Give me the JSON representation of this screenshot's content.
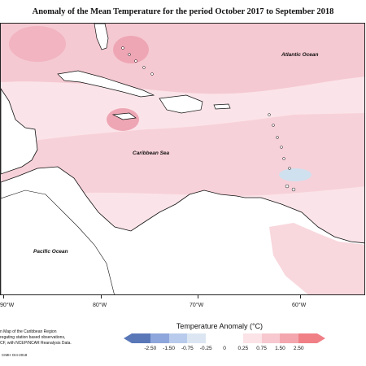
{
  "title": "Anomaly of the Mean Temperature for the period October 2017 to September 2018",
  "labels": {
    "atlantic": "Atlantic Ocean",
    "caribbean": "Caribbean Sea",
    "pacific": "Pacific Ocean"
  },
  "longitudes": [
    "90°W",
    "80°W",
    "70°W",
    "60°W"
  ],
  "caption_lines": [
    "n Map of the Caribbean Region",
    "regating station based observations,",
    "CF, with NCEP/NCAR Reanalysis Data."
  ],
  "credit": "CIMH Oct-2018",
  "legend": {
    "title": "Temperature Anomaly (°C)",
    "ticks": [
      "-2.50",
      "-1.50",
      "-0.75",
      "-0.25",
      "0",
      "0.25",
      "0.75",
      "1.50",
      "2.50"
    ],
    "colors": [
      "#5a78b8",
      "#8da6db",
      "#b9cbec",
      "#dce6f3",
      "#ffffff",
      "#ffffff",
      "#fbe3e7",
      "#f7c8cf",
      "#f3a6ae",
      "#f07f86"
    ]
  },
  "colors": {
    "warm_light": "#fbe4e9",
    "warm_medium": "#f5c9d2",
    "warm_strong": "#eea6b4",
    "cool_light": "#cfe0ee",
    "land": "#ffffff"
  }
}
